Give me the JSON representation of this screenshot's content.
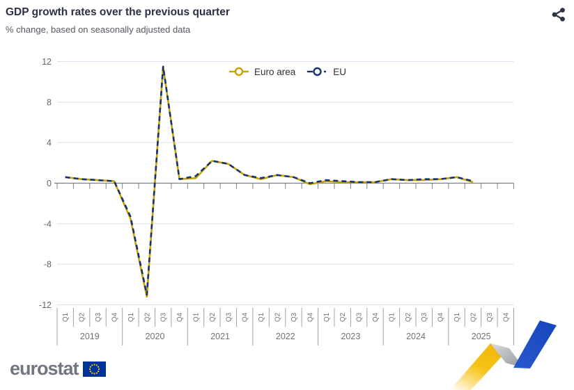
{
  "header": {
    "title": "GDP growth rates over the previous quarter",
    "subtitle": "% change, based on seasonally adjusted data"
  },
  "toolbar": {
    "share_icon": "share-nodes"
  },
  "chart_data": {
    "type": "line",
    "title": "GDP growth rates over the previous quarter",
    "subtitle": "% change, based on seasonally adjusted data",
    "xlabel": "",
    "ylabel": "% change",
    "ylim": [
      -12,
      12
    ],
    "yticks": [
      12,
      8,
      4,
      0,
      -4,
      -8,
      -12
    ],
    "grid": true,
    "legend_position": "top-center",
    "years": [
      "2019",
      "2020",
      "2021",
      "2022",
      "2023",
      "2024",
      "2025"
    ],
    "quarters_per_year": [
      "Q1",
      "Q2",
      "Q3",
      "Q4"
    ],
    "series": [
      {
        "name": "Euro area",
        "color": "#C9A100",
        "line_style": "solid",
        "marker": "open-circle",
        "values": [
          0.6,
          0.4,
          0.3,
          0.2,
          -3.5,
          -11.2,
          11.5,
          0.4,
          0.5,
          2.2,
          1.9,
          0.8,
          0.4,
          0.8,
          0.6,
          -0.1,
          0.2,
          0.1,
          0.1,
          0.1,
          0.4,
          0.3,
          0.3,
          0.4,
          0.6,
          0.1
        ]
      },
      {
        "name": "EU",
        "color": "#16336E",
        "line_style": "dashed",
        "marker": "open-circle",
        "values": [
          0.6,
          0.4,
          0.3,
          0.2,
          -3.3,
          -11.0,
          11.5,
          0.4,
          0.7,
          2.2,
          1.9,
          0.8,
          0.5,
          0.8,
          0.6,
          0.0,
          0.3,
          0.2,
          0.1,
          0.1,
          0.4,
          0.3,
          0.4,
          0.4,
          0.6,
          0.2
        ]
      }
    ]
  },
  "footer": {
    "logo_text": "eurostat"
  },
  "colors": {
    "euro_area": "#C9A100",
    "eu": "#16336E",
    "grid": "#D9E2EE",
    "axis": "#7A7E83",
    "table_line": "#9FA3A8",
    "label_gray": "#6E7277",
    "flag_blue": "#003399",
    "flag_stars": "#FFCC00",
    "ribbon_yellow": "#F2BC13",
    "ribbon_gray": "#9098A0",
    "ribbon_blue": "#2353C6"
  }
}
